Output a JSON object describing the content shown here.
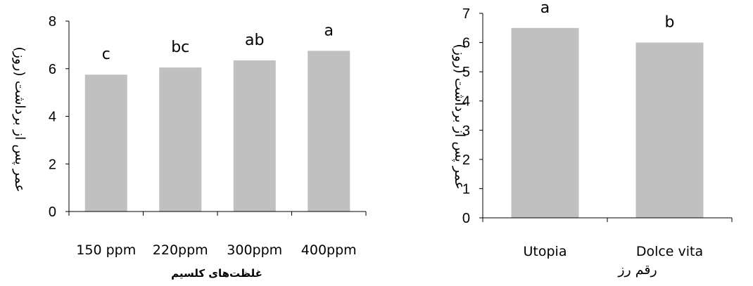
{
  "chart_data": [
    {
      "type": "bar",
      "categories": [
        "150 ppm",
        "220ppm",
        "300ppm",
        "400ppm"
      ],
      "values": [
        5.75,
        6.05,
        6.35,
        6.75
      ],
      "annotations": [
        "c",
        "bc",
        "ab",
        "a"
      ],
      "xlabel": "غلظت‌های کلسیم",
      "ylabel": "عمر پس از برداشت (روز)",
      "ylim": [
        0,
        8
      ],
      "yticks": [
        0,
        2,
        4,
        6,
        8
      ],
      "bar_color": "#c0c0c0",
      "grid": false
    },
    {
      "type": "bar",
      "categories": [
        "Utopia",
        "Dolce vita"
      ],
      "values": [
        6.5,
        6.0
      ],
      "annotations": [
        "a",
        "b"
      ],
      "xlabel": "رقم رز",
      "ylabel": "عمر پس از برداشت (روز)",
      "ylim": [
        0,
        7
      ],
      "yticks": [
        0,
        1,
        2,
        3,
        4,
        5,
        6,
        7
      ],
      "bar_color": "#c0c0c0",
      "grid": false
    }
  ]
}
